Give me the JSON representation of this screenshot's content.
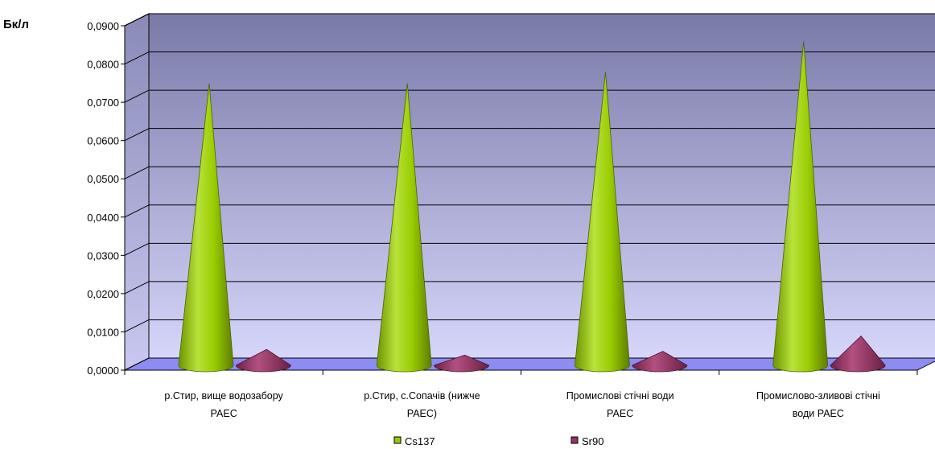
{
  "chart_data": {
    "type": "bar",
    "unit_label": "Бк/л",
    "categories": [
      [
        "р.Стир, вище водозабору",
        "РАЕС"
      ],
      [
        "р.Стир, с.Сопачів (нижче",
        "РАЕС)"
      ],
      [
        "Промислові стічні води",
        "РАЕС"
      ],
      [
        "Промислово-зливові стічні",
        "води РАЕС"
      ]
    ],
    "series": [
      {
        "name": "Cs137",
        "values": [
          0.0745,
          0.0745,
          0.0775,
          0.0855
        ],
        "color": "#99cc00"
      },
      {
        "name": "Sr90",
        "values": [
          0.005,
          0.0035,
          0.0045,
          0.0085
        ],
        "color": "#993366"
      }
    ],
    "y_ticks": [
      "0,0000",
      "0,0100",
      "0,0200",
      "0,0300",
      "0,0400",
      "0,0500",
      "0,0600",
      "0,0700",
      "0,0800",
      "0,0900"
    ],
    "ylim": [
      0,
      0.09
    ],
    "grid": true,
    "legend_position": "bottom",
    "colors": {
      "wall_top": "#7a7aa8",
      "wall_bottom": "#d6d6fb",
      "floor": "#8c8cf2"
    }
  }
}
